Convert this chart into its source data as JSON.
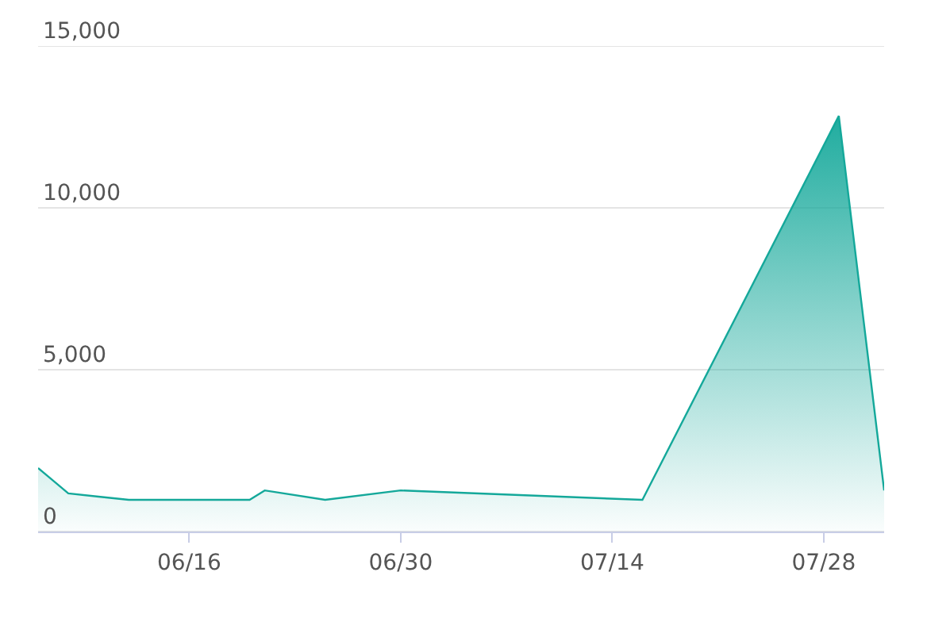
{
  "chart_data": {
    "type": "area",
    "x": [
      "--06-06",
      "--06-07",
      "--06-08",
      "--06-10",
      "--06-12",
      "--06-20",
      "--06-21",
      "--06-25",
      "--06-30",
      "--07-16",
      "--07-29",
      "--08-01"
    ],
    "series": [
      {
        "color": "#14a89a",
        "values": [
          1960,
          1570,
          1180,
          1080,
          980,
          980,
          1270,
          980,
          1270,
          980,
          12840,
          1270
        ]
      }
    ],
    "xlim": [
      "--06-06",
      "--08-01"
    ],
    "xticks": [
      {
        "value": "--06-16",
        "label": "06/16"
      },
      {
        "value": "--06-30",
        "label": "06/30"
      },
      {
        "value": "--07-14",
        "label": "07/14"
      },
      {
        "value": "--07-28",
        "label": "07/28"
      }
    ],
    "ylim": [
      0,
      15000
    ],
    "yticks": [
      0,
      {
        "value": 5000,
        "label": "5,000"
      },
      {
        "value": 10000,
        "label": "10,000"
      },
      {
        "value": 15000,
        "label": "15,000"
      }
    ],
    "grid": "y",
    "legend": false
  }
}
